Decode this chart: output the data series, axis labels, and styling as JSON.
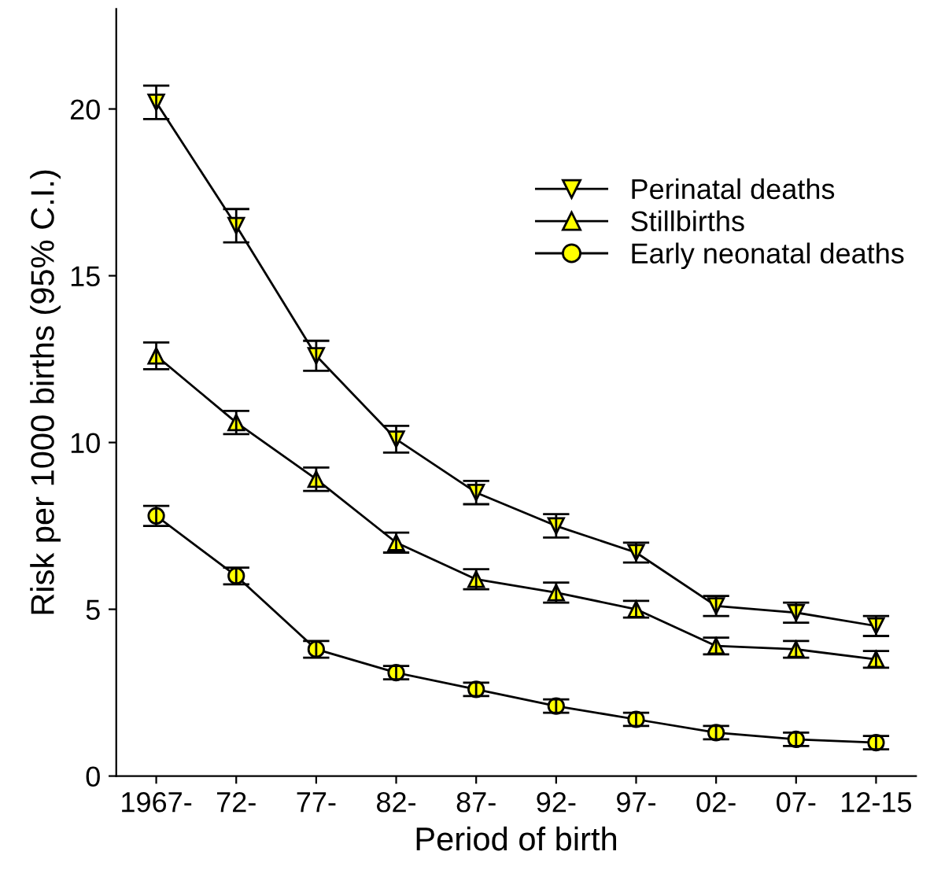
{
  "chart_data": {
    "type": "line",
    "xlabel": "Period of birth",
    "ylabel": "Risk per 1000 births (95% C.I.)",
    "categories": [
      "1967-",
      "72-",
      "77-",
      "82-",
      "87-",
      "92-",
      "97-",
      "02-",
      "07-",
      "12-15"
    ],
    "ylim": [
      0,
      23
    ],
    "yticks": [
      0,
      5,
      10,
      15,
      20
    ],
    "legend": "right",
    "grid": false,
    "series": [
      {
        "name": "Perinatal deaths",
        "color": "#ffff00",
        "marker": "triangle_down",
        "values": [
          20.2,
          16.5,
          12.6,
          10.1,
          8.5,
          7.5,
          6.7,
          5.1,
          4.9,
          4.5
        ],
        "errors": [
          0.5,
          0.5,
          0.45,
          0.4,
          0.35,
          0.35,
          0.3,
          0.3,
          0.3,
          0.3
        ]
      },
      {
        "name": "Stillbirths",
        "color": "#ffff00",
        "marker": "triangle",
        "values": [
          12.6,
          10.6,
          8.9,
          7.0,
          5.9,
          5.5,
          5.0,
          3.9,
          3.8,
          3.5
        ],
        "errors": [
          0.4,
          0.35,
          0.35,
          0.3,
          0.3,
          0.3,
          0.25,
          0.25,
          0.25,
          0.25
        ]
      },
      {
        "name": "Early neonatal deaths",
        "color": "#ffff00",
        "marker": "circle",
        "values": [
          7.8,
          6.0,
          3.8,
          3.1,
          2.6,
          2.1,
          1.7,
          1.3,
          1.1,
          1.0
        ],
        "errors": [
          0.3,
          0.25,
          0.25,
          0.2,
          0.2,
          0.2,
          0.2,
          0.2,
          0.2,
          0.2
        ]
      }
    ]
  }
}
